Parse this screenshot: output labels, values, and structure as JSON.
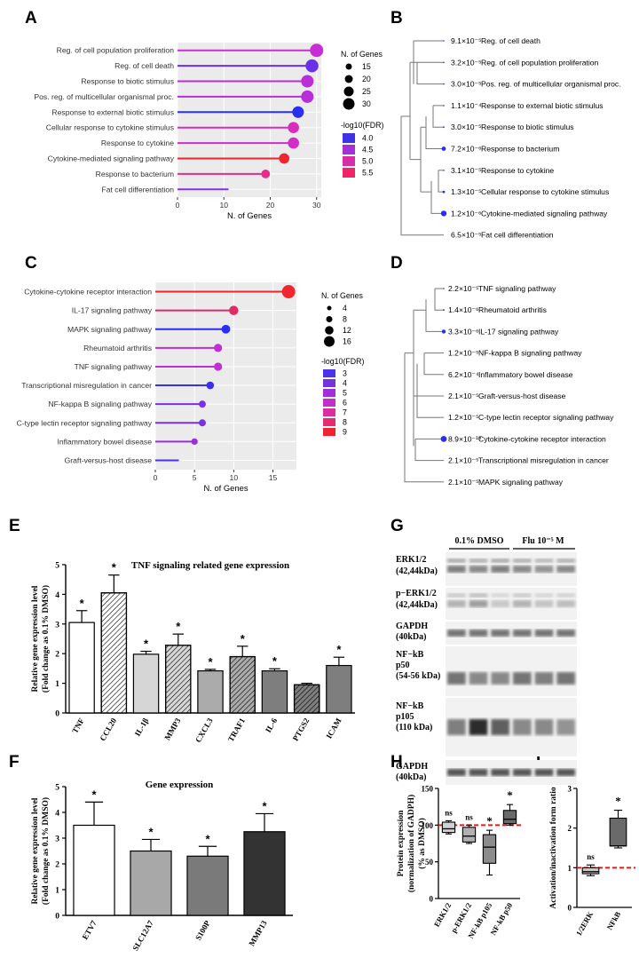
{
  "panel_labels": [
    "A",
    "B",
    "C",
    "D",
    "E",
    "F",
    "G",
    "H",
    "I"
  ],
  "chart_data": [
    {
      "panel": "A",
      "type": "scatter",
      "style": "lollipop",
      "categories": [
        "Reg. of cell population proliferation",
        "Reg. of cell death",
        "Response to biotic stimulus",
        "Pos. reg. of multicellular organismal proc.",
        "Response to external biotic stimulus",
        "Cellular response to cytokine stimulus",
        "Response to cytokine",
        "Cytokine-mediated signaling pathway",
        "Response to bacterium",
        "Fat cell differentiation"
      ],
      "values": [
        30,
        29,
        28,
        28,
        26,
        25,
        25,
        23,
        19,
        11
      ],
      "colors": [
        "#c72ed6",
        "#6a2fe8",
        "#b82ed8",
        "#b82ed8",
        "#2a2ef2",
        "#d92dbd",
        "#d22dc8",
        "#f0262e",
        "#ea2b8a",
        "#8a30e0"
      ],
      "xlabel": "N. of Genes",
      "xlim": [
        0,
        31
      ],
      "xticks": [
        0,
        10,
        20,
        30
      ],
      "size_legend": {
        "title": "N. of Genes",
        "labels": [
          "15",
          "20",
          "25",
          "30"
        ]
      },
      "color_legend": {
        "title": "-log10(FDR)",
        "labels": [
          "4.0",
          "4.5",
          "5.0",
          "5.5"
        ],
        "colors": [
          "#3d33e6",
          "#a630d8",
          "#d52ea6",
          "#f02466"
        ]
      }
    },
    {
      "panel": "B",
      "type": "table",
      "style": "dendrogram",
      "items": [
        {
          "fdr": "9.1×10⁻⁵",
          "label": "Reg. of cell death"
        },
        {
          "fdr": "3.2×10⁻⁵",
          "label": "Reg. of cell population proliferation"
        },
        {
          "fdr": "3.0×10⁻⁵",
          "label": "Pos. reg. of multicellular organismal proc."
        },
        {
          "fdr": "1.1×10⁻⁴",
          "label": "Response to external biotic stimulus"
        },
        {
          "fdr": "3.0×10⁻⁵",
          "label": "Response to biotic stimulus"
        },
        {
          "fdr": "7.2×10⁻⁶",
          "label": "Response to bacterium"
        },
        {
          "fdr": "3.1×10⁻⁵",
          "label": "Response to cytokine"
        },
        {
          "fdr": "1.3×10⁻⁵",
          "label": "Cellular response to cytokine stimulus"
        },
        {
          "fdr": "1.2×10⁻⁶",
          "label": "Cytokine-mediated signaling pathway"
        },
        {
          "fdr": "6.5×10⁻⁵",
          "label": "Fat cell differentiation"
        }
      ]
    },
    {
      "panel": "C",
      "type": "scatter",
      "style": "lollipop",
      "categories": [
        "Cytokine-cytokine receptor interaction",
        "IL-17 signaling pathway",
        "MAPK signaling pathway",
        "Rheumatoid arthritis",
        "TNF signaling pathway",
        "Transcriptional misregulation in cancer",
        "NF-kappa B signaling pathway",
        "C-type lectin receptor signaling pathway",
        "Inflammatory bowel disease",
        "Graft-versus-host disease"
      ],
      "values": [
        17,
        10,
        9,
        8,
        8,
        7,
        6,
        6,
        5,
        3
      ],
      "colors": [
        "#f0262e",
        "#e02a66",
        "#2a2ef2",
        "#c22ed3",
        "#c22ed3",
        "#3b30ec",
        "#7a30e4",
        "#7a30e4",
        "#9a2fdd",
        "#4a32ea"
      ],
      "xlabel": "N. of Genes",
      "xlim": [
        0,
        18
      ],
      "xticks": [
        0,
        5,
        10,
        15
      ],
      "size_legend": {
        "title": "N. of Genes",
        "labels": [
          "4",
          "8",
          "12",
          "16"
        ]
      },
      "color_legend": {
        "title": "-log10(FDR)",
        "labels": [
          "3",
          "4",
          "5",
          "6",
          "7",
          "8",
          "9"
        ],
        "colors": [
          "#4a33e8",
          "#7530e0",
          "#a02fd8",
          "#c42ec8",
          "#d92da0",
          "#e82a70",
          "#f02430"
        ]
      }
    },
    {
      "panel": "D",
      "type": "table",
      "style": "dendrogram",
      "items": [
        {
          "fdr": "2.2×10⁻⁵",
          "label": "TNF signaling pathway"
        },
        {
          "fdr": "1.4×10⁻⁶",
          "label": "Rheumatoid arthritis"
        },
        {
          "fdr": "3.3×10⁻⁶",
          "label": "IL-17 signaling pathway"
        },
        {
          "fdr": "1.2×10⁻⁵",
          "label": "NF-kappa B signaling pathway"
        },
        {
          "fdr": "6.2×10⁻⁴",
          "label": "Inflammatory bowel disease"
        },
        {
          "fdr": "2.1×10⁻⁵",
          "label": "Graft-versus-host disease"
        },
        {
          "fdr": "1.2×10⁻⁵",
          "label": "C-type lectin receptor signaling pathway"
        },
        {
          "fdr": "8.9×10⁻¹⁰",
          "label": "Cytokine-cytokine receptor interaction"
        },
        {
          "fdr": "2.1×10⁻⁵",
          "label": "Transcriptional misregulation in cancer"
        },
        {
          "fdr": "2.1×10⁻⁵",
          "label": "MAPK signaling pathway"
        }
      ]
    },
    {
      "panel": "E",
      "type": "bar",
      "title": "TNF signaling related gene expression",
      "ylabel": "Relative gene expression level\n(Fold change as 0.1% DMSO)",
      "categories": [
        "TNF",
        "CCL20",
        "IL-1β",
        "MMP3",
        "CXCL3",
        "TRAF1",
        "IL-6",
        "PTGS2",
        "ICAM"
      ],
      "values": [
        3.05,
        4.05,
        1.98,
        2.28,
        1.42,
        1.9,
        1.42,
        0.95,
        1.6
      ],
      "errors": [
        0.4,
        0.6,
        0.1,
        0.38,
        0.05,
        0.35,
        0.07,
        0.05,
        0.28
      ],
      "significance": [
        "*",
        "*",
        "*",
        "*",
        "*",
        "*",
        "*",
        "",
        "*"
      ],
      "patterns": [
        "white",
        "hatch-white",
        "light",
        "hatch-light",
        "mid",
        "hatch-mid",
        "dark",
        "hatch-dark",
        "dark"
      ],
      "ylim": [
        0,
        5
      ],
      "yticks": [
        0,
        1,
        2,
        3,
        4,
        5
      ]
    },
    {
      "panel": "F",
      "type": "bar",
      "title": "Gene expression",
      "ylabel": "Relative gene expression level\n(Fold change as 0.1% DMSO)",
      "categories": [
        "ETV7",
        "SLC12A7",
        "S100P",
        "MMP13"
      ],
      "values": [
        3.5,
        2.5,
        2.3,
        3.25
      ],
      "errors": [
        0.9,
        0.45,
        0.38,
        0.7
      ],
      "significance": [
        "*",
        "*",
        "*",
        "*"
      ],
      "colors": [
        "#ffffff",
        "#a8a8a8",
        "#7a7a7a",
        "#333333"
      ],
      "ylim": [
        0,
        5
      ],
      "yticks": [
        0,
        1,
        2,
        3,
        4,
        5
      ]
    },
    {
      "panel": "H",
      "type": "bar",
      "style": "boxplot",
      "ylabel": "Protein expression\n(normalization of GADPH)\n(% as DMSO)",
      "categories": [
        "ERK1/2",
        "p-ERK1/2",
        "NF-kB p105",
        "NF-kB p50"
      ],
      "boxes": [
        {
          "min": 88,
          "q1": 90,
          "median": 95,
          "q3": 104,
          "max": 106
        },
        {
          "min": 75,
          "q1": 77,
          "median": 85,
          "q3": 97,
          "max": 100
        },
        {
          "min": 32,
          "q1": 48,
          "median": 70,
          "q3": 87,
          "max": 93
        },
        {
          "min": 100,
          "q1": 102,
          "median": 108,
          "q3": 120,
          "max": 128
        }
      ],
      "significance": [
        "ns",
        "ns",
        "*",
        "*"
      ],
      "colors": [
        "#d0d0d0",
        "#b0b0b0",
        "#8c8c8c",
        "#6a6a6a"
      ],
      "reference_line": 100,
      "ylim": [
        0,
        150
      ],
      "yticks": [
        0,
        50,
        100,
        150
      ]
    },
    {
      "panel": "I",
      "type": "bar",
      "style": "boxplot",
      "ylabel": "Activation/inactivation form ratio",
      "categories": [
        "1/2ERK",
        "NFkB"
      ],
      "boxes": [
        {
          "min": 0.8,
          "q1": 0.85,
          "median": 0.9,
          "q3": 1.0,
          "max": 1.07
        },
        {
          "min": 1.5,
          "q1": 1.55,
          "median": 1.55,
          "q3": 2.25,
          "max": 2.45
        }
      ],
      "significance": [
        "ns",
        "*"
      ],
      "colors": [
        "#c9c9c9",
        "#6a6a6a"
      ],
      "reference_line": 1,
      "ylim": [
        0,
        3
      ],
      "yticks": [
        0,
        1,
        2,
        3
      ]
    }
  ],
  "blot": {
    "panel": "G",
    "groups": [
      "0.1% DMSO",
      "Flu 10⁻⁵ M"
    ],
    "rows": [
      {
        "name": "ERK1/2",
        "size": "(42,44kDa)"
      },
      {
        "name": "p−ERK1/2",
        "size": "(42,44kDa)"
      },
      {
        "name": "GAPDH",
        "size": "(40kDa)"
      },
      {
        "name": "NF−kB\np50",
        "size": "(54-56 kDa)"
      },
      {
        "name": "NF−kB\np105",
        "size": "(110 kDa)"
      },
      {
        "name": "GAPDH",
        "size": "(40kDa)"
      }
    ]
  }
}
